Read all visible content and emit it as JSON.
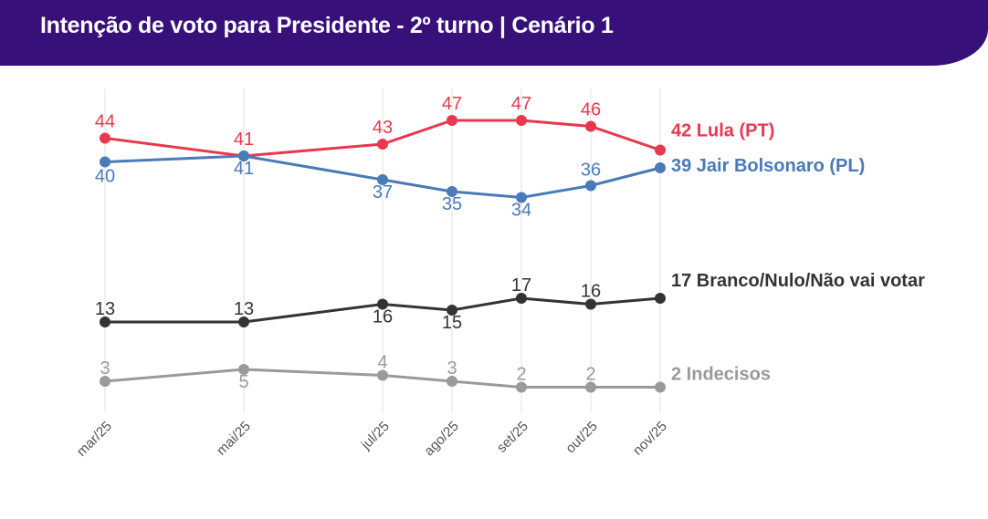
{
  "header": {
    "title": "Intenção de voto para Presidente - 2º turno | Cenário 1"
  },
  "chart_data": {
    "type": "line",
    "title": "Intenção de voto para Presidente - 2º turno | Cenário 1",
    "categories": [
      "mar/25",
      "mai/25",
      "jul/25",
      "ago/25",
      "set/25",
      "out/25",
      "nov/25"
    ],
    "month_index": [
      0,
      2,
      4,
      5,
      6,
      7,
      8
    ],
    "grid": "vertical",
    "legend": "end-labels-right",
    "series": [
      {
        "name": "Lula (PT)",
        "end_label": "42 Lula (PT)",
        "color": "#e8384f",
        "values": [
          44,
          41,
          43,
          47,
          47,
          46,
          42
        ]
      },
      {
        "name": "Jair Bolsonaro (PL)",
        "end_label": "39 Jair Bolsonaro (PL)",
        "color": "#4a7ab8",
        "values": [
          40,
          41,
          37,
          35,
          34,
          36,
          39
        ]
      },
      {
        "name": "Branco/Nulo/Não vai votar",
        "end_label": "17 Branco/Nulo/Não vai votar",
        "color": "#333333",
        "values": [
          13,
          13,
          16,
          15,
          17,
          16,
          17
        ]
      },
      {
        "name": "Indecisos",
        "end_label": "2 Indecisos",
        "color": "#9a9a9a",
        "values": [
          3,
          5,
          4,
          3,
          2,
          2,
          2
        ]
      }
    ]
  }
}
